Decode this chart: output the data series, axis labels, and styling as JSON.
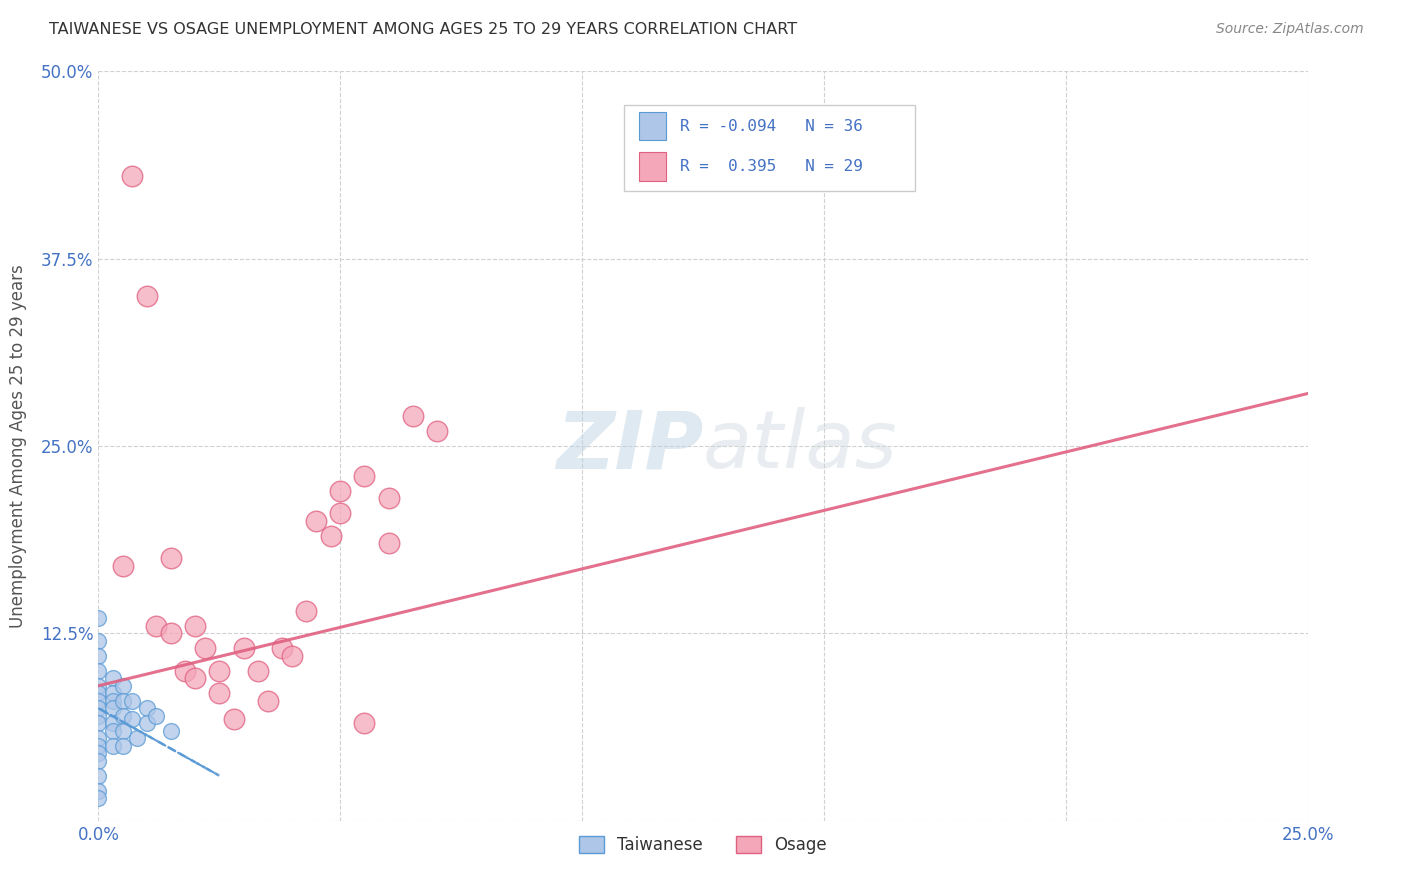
{
  "title": "TAIWANESE VS OSAGE UNEMPLOYMENT AMONG AGES 25 TO 29 YEARS CORRELATION CHART",
  "source": "Source: ZipAtlas.com",
  "ylabel_label": "Unemployment Among Ages 25 to 29 years",
  "xlim": [
    0.0,
    0.25
  ],
  "ylim": [
    0.0,
    0.5
  ],
  "xticks": [
    0.0,
    0.05,
    0.1,
    0.15,
    0.2,
    0.25
  ],
  "yticks": [
    0.0,
    0.125,
    0.25,
    0.375,
    0.5
  ],
  "xtick_labels": [
    "0.0%",
    "",
    "",
    "",
    "",
    "25.0%"
  ],
  "ytick_labels": [
    "",
    "12.5%",
    "25.0%",
    "37.5%",
    "50.0%"
  ],
  "background_color": "#ffffff",
  "grid_color": "#cccccc",
  "watermark_zip": "ZIP",
  "watermark_atlas": "atlas",
  "legend_R1": "-0.094",
  "legend_N1": "36",
  "legend_R2": "0.395",
  "legend_N2": "29",
  "taiwanese_color": "#aec6e8",
  "taiwanese_edge": "#5b9bd5",
  "osage_color": "#f4a7b9",
  "osage_edge": "#e06080",
  "trend_blue": "#5b9bd5",
  "trend_pink": "#e06080",
  "taiwanese_scatter_x": [
    0.0,
    0.0,
    0.0,
    0.0,
    0.0,
    0.0,
    0.0,
    0.0,
    0.0,
    0.0,
    0.0,
    0.0,
    0.0,
    0.0,
    0.0,
    0.003,
    0.003,
    0.003,
    0.003,
    0.003,
    0.005,
    0.005,
    0.005,
    0.007,
    0.007,
    0.01,
    0.01,
    0.012,
    0.015,
    0.0,
    0.0,
    0.003,
    0.003,
    0.005,
    0.005,
    0.008
  ],
  "taiwanese_scatter_y": [
    0.135,
    0.12,
    0.11,
    0.1,
    0.09,
    0.085,
    0.08,
    0.075,
    0.07,
    0.065,
    0.055,
    0.05,
    0.045,
    0.04,
    0.03,
    0.095,
    0.085,
    0.08,
    0.075,
    0.065,
    0.09,
    0.08,
    0.07,
    0.08,
    0.068,
    0.075,
    0.065,
    0.07,
    0.06,
    0.02,
    0.015,
    0.06,
    0.05,
    0.06,
    0.05,
    0.055
  ],
  "osage_scatter_x": [
    0.005,
    0.007,
    0.01,
    0.012,
    0.015,
    0.015,
    0.018,
    0.02,
    0.02,
    0.022,
    0.025,
    0.025,
    0.028,
    0.03,
    0.033,
    0.035,
    0.038,
    0.04,
    0.043,
    0.045,
    0.048,
    0.05,
    0.055,
    0.06,
    0.05,
    0.055,
    0.06,
    0.065,
    0.07
  ],
  "osage_scatter_y": [
    0.17,
    0.43,
    0.35,
    0.13,
    0.175,
    0.125,
    0.1,
    0.13,
    0.095,
    0.115,
    0.1,
    0.085,
    0.068,
    0.115,
    0.1,
    0.08,
    0.115,
    0.11,
    0.14,
    0.2,
    0.19,
    0.205,
    0.065,
    0.215,
    0.22,
    0.23,
    0.185,
    0.27,
    0.26
  ],
  "osage_trend_x0": 0.0,
  "osage_trend_y0": 0.09,
  "osage_trend_x1": 0.25,
  "osage_trend_y1": 0.285,
  "taiwanese_trend_x0": 0.0,
  "taiwanese_trend_y0": 0.075,
  "taiwanese_trend_x1": 0.025,
  "taiwanese_trend_y1": 0.03
}
